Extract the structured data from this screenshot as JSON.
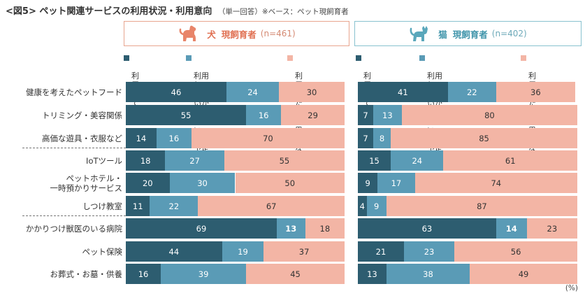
{
  "header": {
    "title": "<図5> ペット関連サービスの利用状況・利用意向",
    "note": "（単一回答）※ベース：ペット現飼育者"
  },
  "panels": [
    {
      "key": "dog",
      "animal": "犬",
      "label": "現飼育者",
      "n": "(n=461)",
      "icon": "dog-icon"
    },
    {
      "key": "cat",
      "animal": "猫",
      "label": "現飼育者",
      "n": "(n=402)",
      "icon": "cat-icon"
    }
  ],
  "legend": [
    {
      "label": "利用している",
      "color": "#2d5d70"
    },
    {
      "label": "利用していないが\n利用したい・利用予定",
      "color": "#5a9bb6"
    },
    {
      "label": "利用したいと\n思わない",
      "color": "#f3b5a5"
    }
  ],
  "unit": "(%)",
  "chart_data": {
    "type": "bar",
    "orientation": "horizontal",
    "stacked": true,
    "title": "<図5> ペット関連サービスの利用状況・利用意向",
    "categories": [
      "健康を考えたペットフード",
      "トリミング・美容関係",
      "高価な遊具・衣服など",
      "IoTツール",
      "ペットホテル・\n一時預かりサービス",
      "しつけ教室",
      "かかりつけ獣医のいる病院",
      "ペット保険",
      "お葬式・お墓・供養"
    ],
    "series_names": [
      "利用している",
      "利用していないが利用したい・利用予定",
      "利用したいと思わない"
    ],
    "panels": [
      {
        "name": "犬 現飼育者 (n=461)",
        "series": [
          {
            "name": "利用している",
            "values": [
              46,
              55,
              14,
              18,
              20,
              11,
              69,
              44,
              16
            ]
          },
          {
            "name": "利用していないが利用したい・利用予定",
            "values": [
              24,
              16,
              16,
              27,
              30,
              22,
              13,
              19,
              39
            ]
          },
          {
            "name": "利用したいと思わない",
            "values": [
              30,
              29,
              70,
              55,
              50,
              67,
              18,
              37,
              45
            ]
          }
        ]
      },
      {
        "name": "猫 現飼育者 (n=402)",
        "series": [
          {
            "name": "利用している",
            "values": [
              41,
              7,
              7,
              15,
              9,
              4,
              63,
              21,
              13
            ]
          },
          {
            "name": "利用していないが利用したい・利用予定",
            "values": [
              22,
              13,
              8,
              24,
              17,
              9,
              14,
              23,
              38
            ]
          },
          {
            "name": "利用したいと思わない",
            "values": [
              36,
              80,
              85,
              61,
              74,
              87,
              23,
              56,
              49
            ]
          }
        ]
      }
    ],
    "highlighted": [
      "かかりつけ獣医のいる病院: 利用していないが利用したい・利用予定"
    ],
    "xlim": [
      0,
      100
    ],
    "unit": "%"
  }
}
